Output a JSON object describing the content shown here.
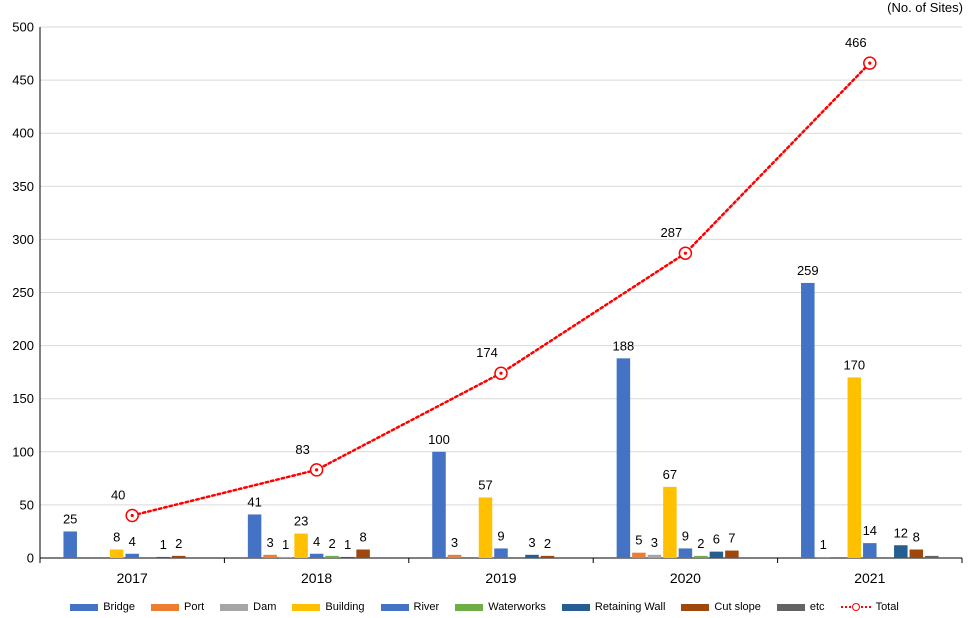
{
  "chart_data": {
    "type": "bar",
    "unit_label": "(No. of Sites)",
    "categories": [
      "2017",
      "2018",
      "2019",
      "2020",
      "2021"
    ],
    "ylim": [
      0,
      500
    ],
    "yticks": [
      "0",
      "50",
      "100",
      "150",
      "200",
      "250",
      "300",
      "350",
      "400",
      "450",
      "500"
    ],
    "grid": true,
    "legend_position": "bottom",
    "series": [
      {
        "name": "Bridge",
        "color": "#4472c4",
        "values": [
          25,
          41,
          100,
          188,
          259
        ],
        "labels": [
          "25",
          "41",
          "100",
          "188",
          "259"
        ]
      },
      {
        "name": "Port",
        "color": "#ed7d31",
        "values": [
          0,
          3,
          3,
          5,
          1
        ],
        "labels": [
          "",
          "3",
          "3",
          "5",
          "1"
        ]
      },
      {
        "name": "Dam",
        "color": "#a5a5a5",
        "values": [
          0,
          1,
          0,
          3,
          0
        ],
        "labels": [
          "",
          "1",
          "",
          "3",
          ""
        ]
      },
      {
        "name": "Building",
        "color": "#ffc000",
        "values": [
          8,
          23,
          57,
          67,
          170
        ],
        "labels": [
          "8",
          "23",
          "57",
          "67",
          "170"
        ]
      },
      {
        "name": "River",
        "color": "#4472c4",
        "values": [
          4,
          4,
          9,
          9,
          14
        ],
        "labels": [
          "4",
          "4",
          "9",
          "9",
          "14"
        ]
      },
      {
        "name": "Waterworks",
        "color": "#70ad47",
        "values": [
          0,
          2,
          0,
          2,
          0
        ],
        "labels": [
          "",
          "2",
          "",
          "2",
          ""
        ]
      },
      {
        "name": "Retaining Wall",
        "color": "#255e91",
        "values": [
          1,
          1,
          3,
          6,
          12
        ],
        "labels": [
          "1",
          "1",
          "3",
          "6",
          "12"
        ]
      },
      {
        "name": "Cut slope",
        "color": "#9e480e",
        "values": [
          2,
          8,
          2,
          7,
          8
        ],
        "labels": [
          "2",
          "8",
          "2",
          "7",
          "8"
        ]
      },
      {
        "name": "etc",
        "color": "#636363",
        "values": [
          0,
          0,
          0,
          0,
          2
        ],
        "labels": [
          "",
          "",
          "",
          "",
          ""
        ]
      }
    ],
    "line_series": {
      "name": "Total",
      "color": "#ff0000",
      "values": [
        40,
        83,
        174,
        287,
        466
      ],
      "labels": [
        "40",
        "83",
        "174",
        "287",
        "466"
      ]
    }
  }
}
